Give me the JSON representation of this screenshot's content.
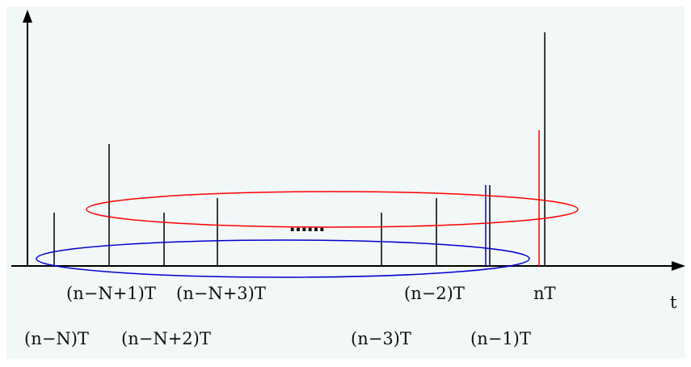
{
  "axis": {
    "t_label": "t"
  },
  "labels": {
    "n_minus_N": "(n−N)T",
    "n_minus_N_plus_1": "(n−N+1)T",
    "n_minus_N_plus_2": "(n−N+2)T",
    "n_minus_N_plus_3": "(n−N+3)T",
    "n_minus_3": "(n−3)T",
    "n_minus_2": "(n−2)T",
    "n_minus_1": "(n−1)T",
    "n": "nT"
  },
  "ellipsis": "……",
  "colors": {
    "axis": "#000000",
    "sample": "#000000",
    "red_window": "#ff0000",
    "blue_window": "#0000cc",
    "background": "#f1f8f7"
  }
}
